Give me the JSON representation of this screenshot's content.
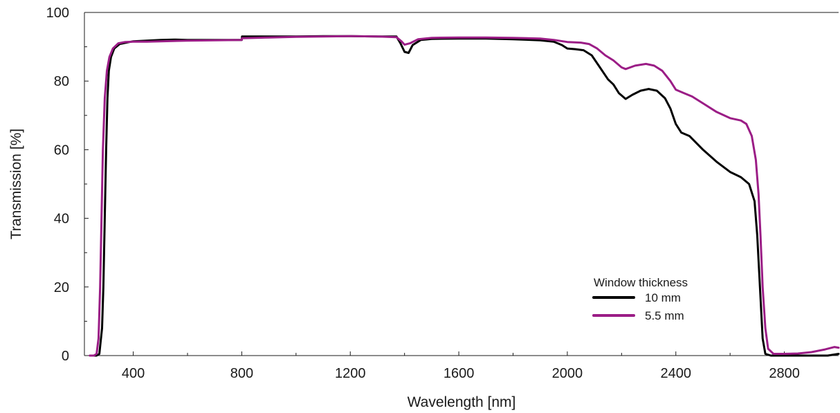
{
  "chart_data": {
    "type": "line",
    "title": "",
    "xlabel": "Wavelength [nm]",
    "ylabel": "Transmission [%]",
    "xlim": [
      220,
      3000
    ],
    "ylim": [
      0,
      100
    ],
    "x_ticks": [
      400,
      800,
      1200,
      1600,
      2000,
      2400,
      2800
    ],
    "x_minor_ticks": [
      600,
      1000,
      1400,
      1800,
      2200,
      2600
    ],
    "y_ticks": [
      0,
      20,
      40,
      60,
      80,
      100
    ],
    "y_minor_ticks": [
      10,
      30,
      50,
      70,
      90
    ],
    "grid": false,
    "legend": {
      "title": "Window thickness",
      "position": "lower-right"
    },
    "series": [
      {
        "name": "10 mm",
        "color": "#000000",
        "points": [
          [
            245,
            0
          ],
          [
            265,
            0
          ],
          [
            275,
            0.5
          ],
          [
            285,
            8
          ],
          [
            290,
            20
          ],
          [
            295,
            40
          ],
          [
            300,
            60
          ],
          [
            305,
            75
          ],
          [
            310,
            83
          ],
          [
            318,
            87
          ],
          [
            330,
            89.5
          ],
          [
            350,
            90.8
          ],
          [
            380,
            91.3
          ],
          [
            400,
            91.6
          ],
          [
            450,
            91.8
          ],
          [
            500,
            92
          ],
          [
            550,
            92.1
          ],
          [
            600,
            92
          ],
          [
            650,
            92
          ],
          [
            700,
            92
          ],
          [
            800,
            92
          ],
          [
            801,
            93
          ],
          [
            900,
            93
          ],
          [
            1000,
            93
          ],
          [
            1100,
            93.1
          ],
          [
            1200,
            93.1
          ],
          [
            1300,
            93
          ],
          [
            1370,
            93
          ],
          [
            1385,
            91
          ],
          [
            1400,
            88.5
          ],
          [
            1415,
            88.2
          ],
          [
            1430,
            90.5
          ],
          [
            1460,
            92
          ],
          [
            1500,
            92.3
          ],
          [
            1600,
            92.4
          ],
          [
            1700,
            92.4
          ],
          [
            1800,
            92.2
          ],
          [
            1900,
            91.9
          ],
          [
            1950,
            91.5
          ],
          [
            1980,
            90.5
          ],
          [
            2000,
            89.5
          ],
          [
            2030,
            89.3
          ],
          [
            2060,
            89
          ],
          [
            2090,
            87.5
          ],
          [
            2120,
            84
          ],
          [
            2150,
            80.5
          ],
          [
            2170,
            79
          ],
          [
            2190,
            76.5
          ],
          [
            2215,
            74.8
          ],
          [
            2240,
            76
          ],
          [
            2270,
            77.2
          ],
          [
            2300,
            77.7
          ],
          [
            2330,
            77.2
          ],
          [
            2360,
            75
          ],
          [
            2380,
            72
          ],
          [
            2400,
            67.5
          ],
          [
            2420,
            65
          ],
          [
            2450,
            64
          ],
          [
            2500,
            60
          ],
          [
            2550,
            56.5
          ],
          [
            2600,
            53.5
          ],
          [
            2640,
            52
          ],
          [
            2670,
            50
          ],
          [
            2690,
            45
          ],
          [
            2700,
            35
          ],
          [
            2710,
            20
          ],
          [
            2720,
            5
          ],
          [
            2730,
            0.5
          ],
          [
            2750,
            0
          ],
          [
            2800,
            0
          ],
          [
            2900,
            0
          ],
          [
            2960,
            0
          ],
          [
            3000,
            0.5
          ]
        ]
      },
      {
        "name": "5.5 mm",
        "color": "#9b1d86",
        "points": [
          [
            240,
            0
          ],
          [
            255,
            0
          ],
          [
            265,
            0.5
          ],
          [
            272,
            5
          ],
          [
            278,
            20
          ],
          [
            283,
            40
          ],
          [
            288,
            60
          ],
          [
            295,
            75
          ],
          [
            303,
            83
          ],
          [
            312,
            87
          ],
          [
            325,
            89.5
          ],
          [
            345,
            91
          ],
          [
            370,
            91.4
          ],
          [
            400,
            91.5
          ],
          [
            450,
            91.5
          ],
          [
            500,
            91.6
          ],
          [
            600,
            91.8
          ],
          [
            700,
            91.9
          ],
          [
            800,
            92
          ],
          [
            801,
            92.5
          ],
          [
            900,
            92.7
          ],
          [
            1000,
            92.9
          ],
          [
            1100,
            93
          ],
          [
            1200,
            93.1
          ],
          [
            1300,
            93
          ],
          [
            1370,
            92.8
          ],
          [
            1390,
            91.5
          ],
          [
            1400,
            90.6
          ],
          [
            1420,
            91
          ],
          [
            1450,
            92.2
          ],
          [
            1500,
            92.6
          ],
          [
            1600,
            92.7
          ],
          [
            1700,
            92.7
          ],
          [
            1800,
            92.6
          ],
          [
            1900,
            92.4
          ],
          [
            1950,
            92
          ],
          [
            2000,
            91.4
          ],
          [
            2050,
            91.2
          ],
          [
            2080,
            90.8
          ],
          [
            2110,
            89.5
          ],
          [
            2140,
            87.5
          ],
          [
            2170,
            86
          ],
          [
            2200,
            84
          ],
          [
            2215,
            83.5
          ],
          [
            2250,
            84.5
          ],
          [
            2290,
            85
          ],
          [
            2320,
            84.5
          ],
          [
            2350,
            83
          ],
          [
            2380,
            80
          ],
          [
            2400,
            77.5
          ],
          [
            2430,
            76.5
          ],
          [
            2460,
            75.5
          ],
          [
            2500,
            73.5
          ],
          [
            2550,
            71
          ],
          [
            2600,
            69.2
          ],
          [
            2640,
            68.5
          ],
          [
            2660,
            67.5
          ],
          [
            2680,
            64
          ],
          [
            2695,
            57
          ],
          [
            2705,
            47
          ],
          [
            2712,
            35
          ],
          [
            2720,
            20
          ],
          [
            2730,
            8
          ],
          [
            2740,
            2
          ],
          [
            2760,
            0.5
          ],
          [
            2800,
            0.5
          ],
          [
            2850,
            0.6
          ],
          [
            2900,
            1
          ],
          [
            2950,
            1.8
          ],
          [
            2985,
            2.5
          ],
          [
            3000,
            2.3
          ]
        ]
      }
    ]
  }
}
